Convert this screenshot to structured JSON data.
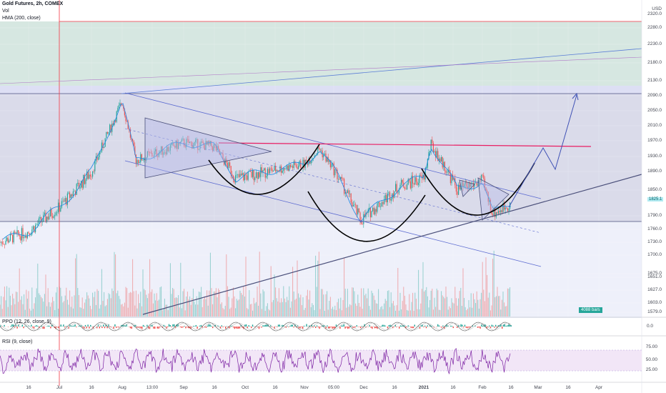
{
  "header": {
    "title": "Gold Futures, 2h, COMEX",
    "volume_label": "Vol",
    "hma_label": "HMA (200, close)"
  },
  "price_axis": {
    "currency": "USD",
    "ticks": [
      2320.0,
      2280.0,
      2230.0,
      2180.0,
      2130.0,
      2090.0,
      2050.0,
      2010.0,
      1970.0,
      1930.0,
      1890.0,
      1850.0,
      1790.0,
      1760.0,
      1730.0,
      1700.0,
      1675.0,
      1651.0,
      1627.0,
      1603.0,
      1579.0
    ],
    "current_price": "1825.1"
  },
  "time_axis": {
    "labels": [
      "16",
      "Jul",
      "16",
      "Aug",
      "13:00",
      "Sep",
      "16",
      "Oct",
      "16",
      "Nov",
      "05:00",
      "Dec",
      "16",
      "2021",
      "16",
      "Feb",
      "16",
      "Mar",
      "16",
      "Apr"
    ]
  },
  "bars_badge": "4088 bars",
  "ppo": {
    "label": "PPO (12, 26, close, 9)",
    "ticks": [
      "0.0"
    ]
  },
  "rsi": {
    "label": "RSI (9, close)",
    "ticks": [
      "75.00",
      "50.00",
      "25.00"
    ]
  },
  "colors": {
    "accent_purple": "#7b1fa2",
    "trend_blue": "#5b6ad0",
    "resistance_pink": "#e91e63",
    "vertical_red": "#f23645",
    "green_zone": "#cfe3dc",
    "blue_zone": "#d9dcf3"
  },
  "chart_data": {
    "type": "line",
    "instrument": "Gold Futures",
    "interval": "2h",
    "exchange": "COMEX",
    "ylim": [
      1560,
      2345
    ],
    "series": [
      {
        "x": [
          "Jun 10",
          "Jun 25",
          "Jul 10",
          "Jul 25",
          "Aug 6",
          "Aug 15",
          "Sep 1",
          "Sep 15",
          "Sep 25",
          "Oct 10",
          "Oct 25",
          "Nov 5",
          "Nov 20",
          "Dec 1",
          "Dec 15",
          "Jan 1",
          "Jan 6",
          "Jan 20",
          "Feb 1",
          "Feb 10",
          "Feb 20"
        ],
        "values": [
          1730,
          1755,
          1810,
          1890,
          2075,
          1920,
          1965,
          1955,
          1875,
          1895,
          1910,
          1950,
          1860,
          1780,
          1860,
          1875,
          1960,
          1850,
          1870,
          1795,
          1820
        ]
      }
    ],
    "annotations": {
      "resistance_level": 1960,
      "target_price": 2090,
      "support_level": 1780
    }
  }
}
